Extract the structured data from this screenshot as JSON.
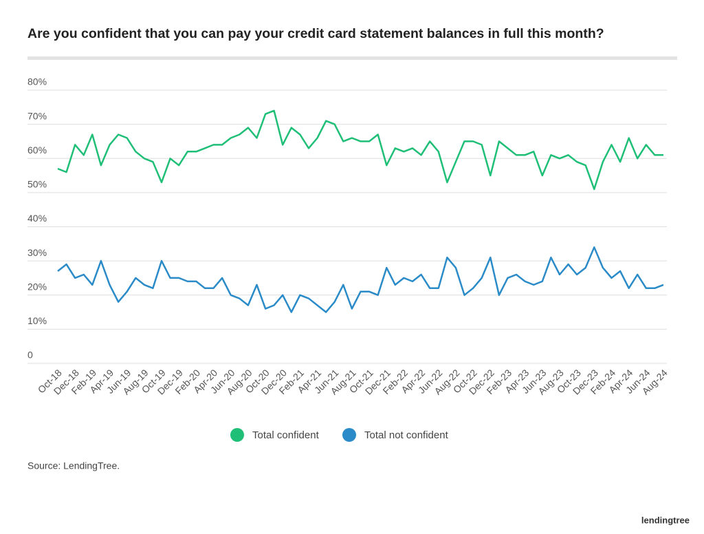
{
  "chart_data": {
    "type": "line",
    "title": "Are you confident that you can pay your credit card statement balances in full this month?",
    "categories": [
      "Oct-18",
      null,
      "Dec-18",
      null,
      "Feb-19",
      null,
      "Apr-19",
      null,
      "Jun-19",
      null,
      "Aug-19",
      null,
      "Oct-19",
      null,
      "Dec-19",
      null,
      "Feb-20",
      null,
      "Apr-20",
      null,
      "Jun-20",
      null,
      "Aug-20",
      null,
      "Oct-20",
      null,
      "Dec-20",
      null,
      "Feb-21",
      null,
      "Apr-21",
      null,
      "Jun-21",
      null,
      "Aug-21",
      null,
      "Oct-21",
      null,
      "Dec-21",
      null,
      "Feb-22",
      null,
      "Apr-22",
      null,
      "Jun-22",
      null,
      "Aug-22",
      null,
      "Oct-22",
      null,
      "Dec-22",
      null,
      "Feb-23",
      null,
      "Apr-23",
      null,
      "Jun-23",
      null,
      "Aug-23",
      null,
      "Oct-23",
      null,
      "Dec-23",
      null,
      "Feb-24",
      null,
      "Apr-24",
      null,
      "Jun-24",
      null,
      "Aug-24"
    ],
    "series": [
      {
        "name": "Total confident",
        "color": "#1fbf77",
        "values": [
          57,
          56,
          64,
          61,
          67,
          58,
          64,
          67,
          66,
          62,
          60,
          59,
          53,
          60,
          58,
          62,
          62,
          63,
          64,
          64,
          66,
          67,
          69,
          66,
          73,
          74,
          64,
          69,
          67,
          63,
          66,
          71,
          70,
          65,
          66,
          65,
          65,
          67,
          58,
          63,
          62,
          63,
          61,
          65,
          62,
          53,
          59,
          65,
          65,
          64,
          55,
          65,
          63,
          61,
          61,
          62,
          55,
          61,
          60,
          61,
          59,
          58,
          51,
          59,
          64,
          59,
          66,
          60,
          64,
          61,
          61
        ]
      },
      {
        "name": "Total not confident",
        "color": "#2a8bc8",
        "values": [
          27,
          29,
          25,
          26,
          23,
          30,
          23,
          18,
          21,
          25,
          23,
          22,
          30,
          25,
          25,
          24,
          24,
          22,
          22,
          25,
          20,
          19,
          17,
          23,
          16,
          17,
          20,
          15,
          20,
          19,
          17,
          15,
          18,
          23,
          16,
          21,
          21,
          20,
          28,
          23,
          25,
          24,
          26,
          22,
          22,
          31,
          28,
          20,
          22,
          25,
          31,
          20,
          25,
          26,
          24,
          23,
          24,
          31,
          26,
          29,
          26,
          28,
          34,
          28,
          25,
          27,
          22,
          26,
          22,
          22,
          23
        ]
      }
    ],
    "ylim": [
      0,
      80
    ],
    "yticks": [
      0,
      {
        "value": 10,
        "label": "10%"
      },
      {
        "value": 20,
        "label": "20%"
      },
      {
        "value": 30,
        "label": "30%"
      },
      {
        "value": 40,
        "label": "40%"
      },
      {
        "value": 50,
        "label": "50%"
      },
      {
        "value": 60,
        "label": "60%"
      },
      {
        "value": 70,
        "label": "70%"
      },
      {
        "value": 80,
        "label": "80%"
      }
    ],
    "grid": true,
    "legend": "bottom",
    "source": "Source: LendingTree."
  },
  "logo": "lendingtree"
}
